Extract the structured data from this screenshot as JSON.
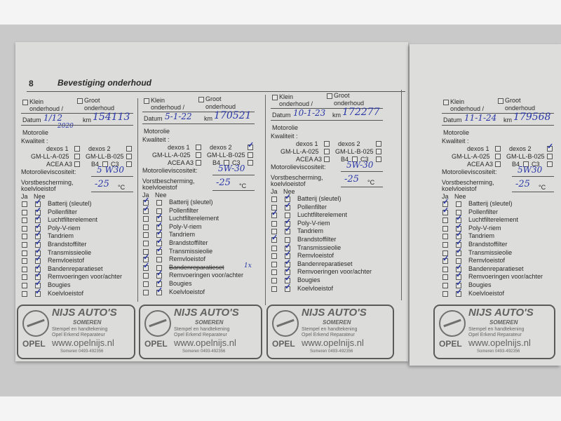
{
  "page_number": "8",
  "title": "Bevestiging onderhoud",
  "labels": {
    "klein": "Klein",
    "klein2": "onderhoud /",
    "groot": "Groot",
    "groot2": "onderhoud",
    "datum": "Datum",
    "km": "km",
    "motorolie": "Motorolie",
    "kwaliteit": "Kwaliteit :",
    "dexos1": "dexos 1",
    "dexos2": "dexos 2",
    "gmlla": "GM-LL-A-025",
    "gmllb": "GM-LL-B-025",
    "acea": "ACEA A3",
    "b4": "B4",
    "c3": "C3",
    "viscositeit": "Motorolieviscositeit:",
    "vorst1": "Vorstbescherming,",
    "vorst2": "koelvloeistof",
    "celsius": "°C",
    "ja": "Ja",
    "nee": "Nee"
  },
  "checklist_items": [
    "Batterij (sleutel)",
    "Pollenfilter",
    "Luchtfilterelement",
    "Poly-V-riem",
    "Tandriem",
    "Brandstoffilter",
    "Transmissieolie",
    "Remvloeistof",
    "Bandenreparatieset",
    "Remvoeringen voor/achter",
    "Bougies",
    "Koelvloeistof"
  ],
  "entries": [
    {
      "datum": "1/12",
      "datum_extra": "2020",
      "km": "154113",
      "viscositeit": "5 W30",
      "vorst": "-25",
      "oil_quality": "",
      "checks": [
        "nee",
        "nee",
        "nee",
        "nee",
        "nee",
        "nee",
        "nee",
        "nee",
        "nee",
        "nee",
        "nee",
        "nee"
      ],
      "note": ""
    },
    {
      "datum": "5-1-22",
      "km": "170521",
      "viscositeit": "5W-30",
      "vorst": "-25",
      "oil_quality": "dexos 2",
      "checks": [
        "ja",
        "ja",
        "nee",
        "nee",
        "nee",
        "nee",
        "nee",
        "ja",
        "ja",
        "nee",
        "nee",
        "nee"
      ],
      "note": "1x"
    },
    {
      "datum": "10-1-23",
      "km": "172277",
      "viscositeit": "5W-30",
      "vorst": "-25",
      "oil_quality": "",
      "checks": [
        "nee",
        "nee",
        "ja",
        "nee",
        "nee",
        "ja",
        "nee",
        "nee",
        "nee",
        "nee",
        "nee",
        "nee"
      ],
      "note": ""
    },
    {
      "datum": "11-1-24",
      "km": "179568",
      "viscositeit": "5W30",
      "vorst": "-25",
      "oil_quality": "dexos 2",
      "checks": [
        "ja",
        "ja",
        "nee",
        "nee",
        "nee",
        "nee",
        "nee",
        "ja",
        "nee",
        "nee",
        "nee",
        "nee"
      ],
      "note": ""
    }
  ],
  "stamp": {
    "name": "NIJS AUTO'S",
    "city": "SOMEREN",
    "line1": "Stempel en handtekening",
    "line2": "Opel Erkend Reparateur",
    "web": "www.opelnijs.nl",
    "phone": "Someren 0493-492356",
    "brand": "OPEL"
  },
  "colors": {
    "ink": "#2836a8",
    "paper": "#dcdcda"
  }
}
